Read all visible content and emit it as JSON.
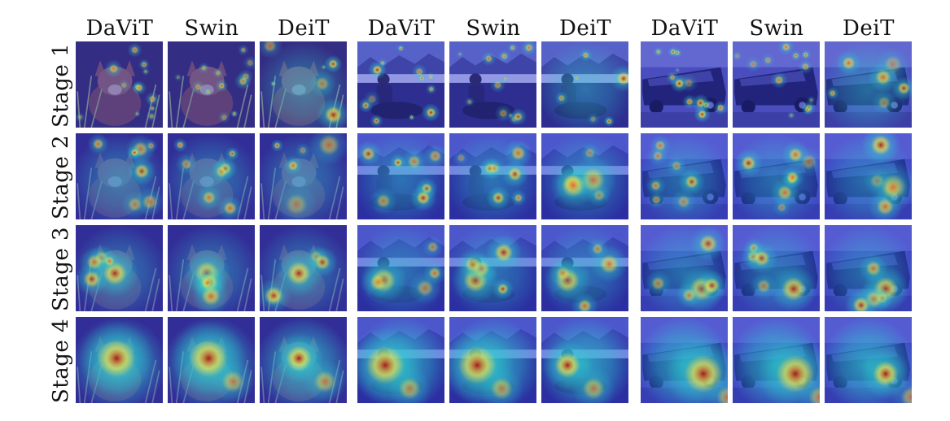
{
  "figure": {
    "column_headers": [
      "DaViT",
      "Swin",
      "DeiT",
      "DaViT",
      "Swin",
      "DeiT",
      "DaViT",
      "Swin",
      "DeiT"
    ],
    "row_labels": [
      "Stage 1",
      "Stage 2",
      "Stage 3",
      "Stage 4"
    ],
    "image_groups": [
      "fox",
      "motorcycle-rider",
      "limousine"
    ],
    "overlay": "attention-heatmap"
  },
  "colors": {
    "heat_low": "#2a2fd8",
    "heat_mid": "#2ecfd0",
    "heat_high_1": "#f2e34a",
    "heat_high_2": "#e8451f",
    "heat_peak": "#a0101a"
  }
}
